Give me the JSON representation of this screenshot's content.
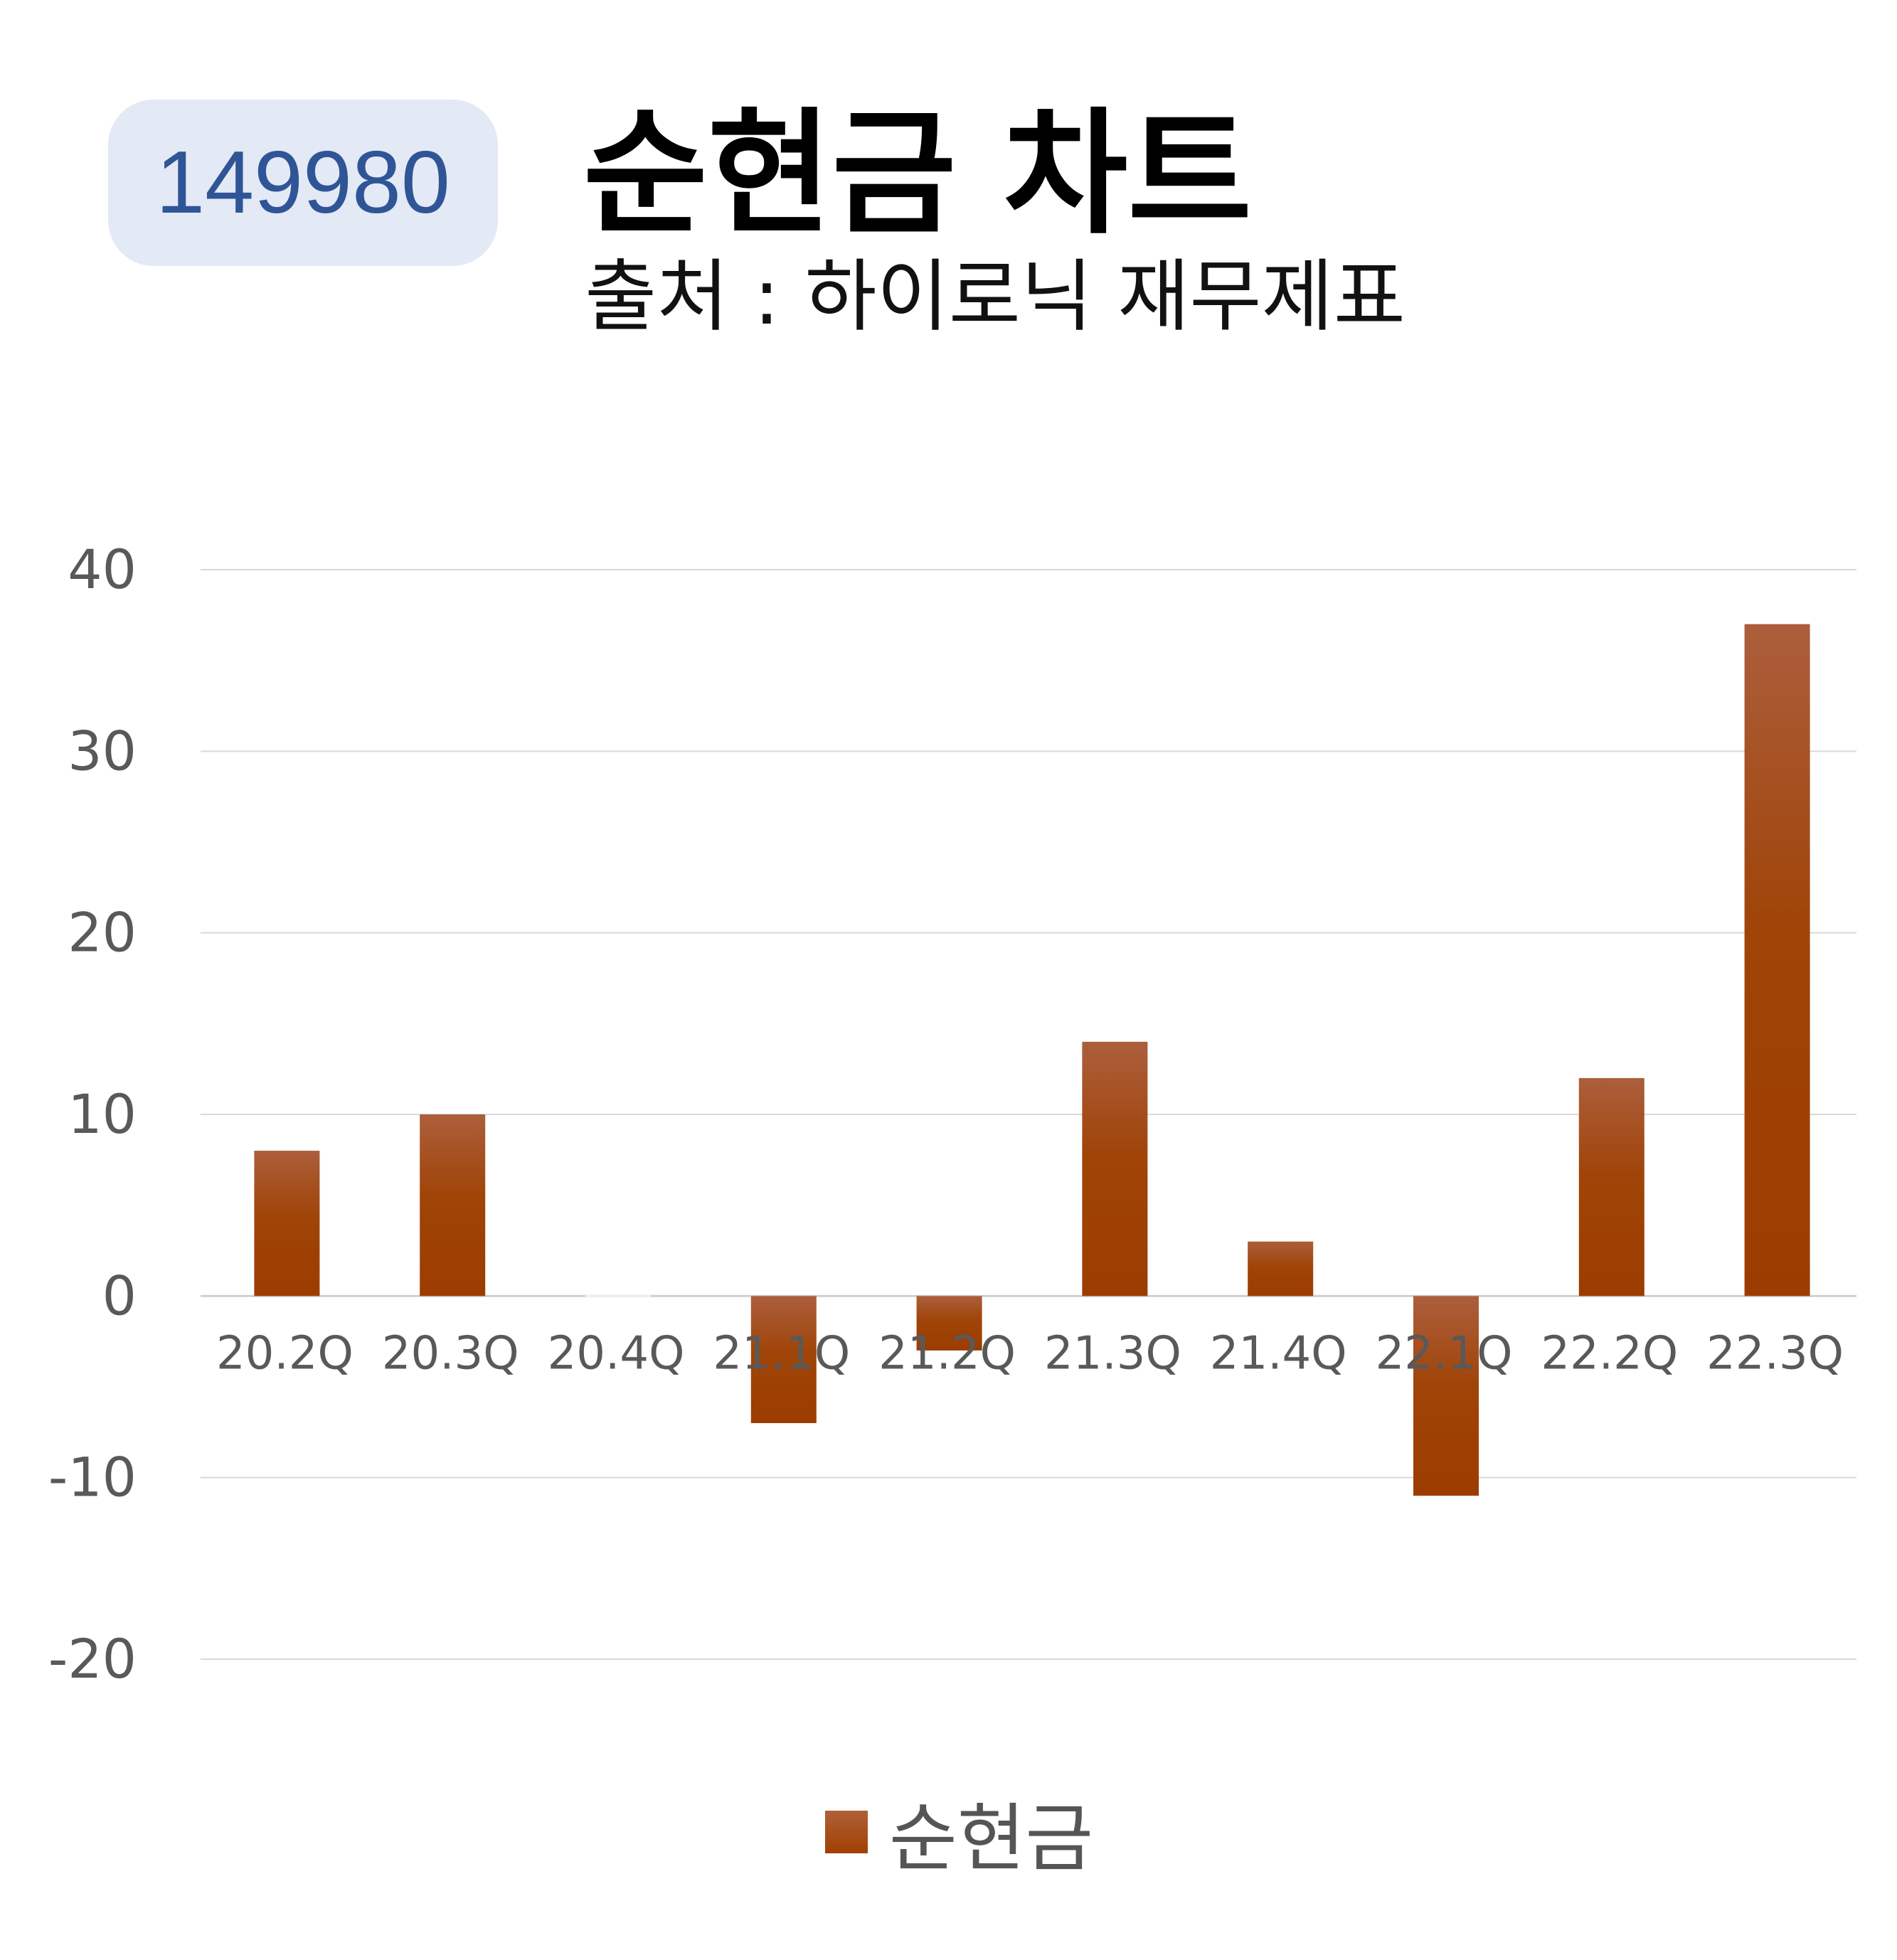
{
  "code": "149980",
  "title": "순현금 차트",
  "subtitle": "출처 : 하이로닉 재무제표",
  "colors": {
    "bar": "#a04000",
    "bar_top": "#b06040",
    "badge_bg": "#e3e9f5",
    "badge_text": "#2f5597",
    "grid": "#d9d9d9",
    "axis_text": "#595959"
  },
  "chart_data": {
    "type": "bar",
    "categories": [
      "20.2Q",
      "20.3Q",
      "20.4Q",
      "21.1Q",
      "21.2Q",
      "21.3Q",
      "21.4Q",
      "22.1Q",
      "22.2Q",
      "22.3Q"
    ],
    "series": [
      {
        "name": "순현금",
        "values": [
          8,
          10,
          0,
          -7,
          -3,
          14,
          3,
          -11,
          12,
          37
        ]
      }
    ],
    "ylim": [
      -20,
      40
    ],
    "yticks": [
      "40",
      "30",
      "20",
      "10",
      "0",
      "-10",
      "-20"
    ],
    "grid": true,
    "legend": "bottom"
  }
}
